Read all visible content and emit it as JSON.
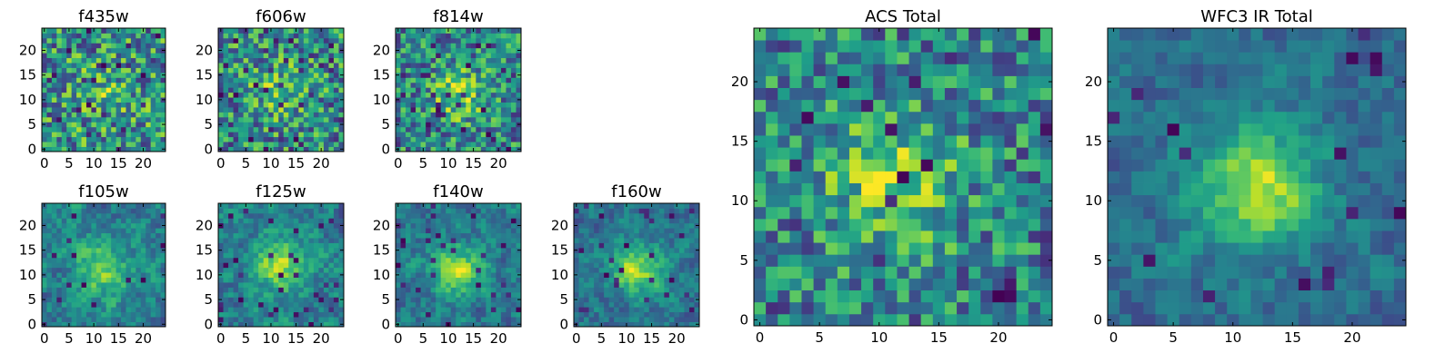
{
  "chart_data": [
    {
      "id": "f435w",
      "type": "heatmap",
      "title": "f435w",
      "grid_size": 25,
      "colormap": "viridis",
      "x_ticks": [
        "0",
        "5",
        "10",
        "15",
        "20"
      ],
      "y_ticks": [
        "0",
        "5",
        "10",
        "15",
        "20"
      ],
      "vmin": 0,
      "vmax": 1,
      "seed": 11,
      "blob": {
        "cx": 12,
        "cy": 12,
        "sigma": 4,
        "amp": 0.15
      },
      "noise": 0.85,
      "dark_fraction": 0.04
    },
    {
      "id": "f606w",
      "type": "heatmap",
      "title": "f606w",
      "grid_size": 25,
      "colormap": "viridis",
      "x_ticks": [
        "0",
        "5",
        "10",
        "15",
        "20"
      ],
      "y_ticks": [
        "0",
        "5",
        "10",
        "15",
        "20"
      ],
      "vmin": 0,
      "vmax": 1,
      "seed": 23,
      "blob": {
        "cx": 12,
        "cy": 12,
        "sigma": 4,
        "amp": 0.2
      },
      "noise": 0.8,
      "dark_fraction": 0.06
    },
    {
      "id": "f814w",
      "type": "heatmap",
      "title": "f814w",
      "grid_size": 25,
      "colormap": "viridis",
      "x_ticks": [
        "0",
        "5",
        "10",
        "15",
        "20"
      ],
      "y_ticks": [
        "0",
        "5",
        "10",
        "15",
        "20"
      ],
      "vmin": 0,
      "vmax": 1,
      "seed": 37,
      "blob": {
        "cx": 12,
        "cy": 11,
        "sigma": 3.5,
        "amp": 0.35
      },
      "noise": 0.75,
      "dark_fraction": 0.05
    },
    {
      "id": "f105w",
      "type": "heatmap",
      "title": "f105w",
      "grid_size": 25,
      "colormap": "viridis",
      "x_ticks": [
        "0",
        "5",
        "10",
        "15",
        "20"
      ],
      "y_ticks": [
        "0",
        "5",
        "10",
        "15",
        "20"
      ],
      "vmin": 0,
      "vmax": 1,
      "seed": 41,
      "blob": {
        "cx": 12,
        "cy": 11,
        "sigma": 4,
        "amp": 0.35
      },
      "noise": 0.65,
      "dark_fraction": 0.03,
      "smooth": true
    },
    {
      "id": "f125w",
      "type": "heatmap",
      "title": "f125w",
      "grid_size": 25,
      "colormap": "viridis",
      "x_ticks": [
        "0",
        "5",
        "10",
        "15",
        "20"
      ],
      "y_ticks": [
        "0",
        "5",
        "10",
        "15",
        "20"
      ],
      "vmin": 0,
      "vmax": 1,
      "seed": 53,
      "blob": {
        "cx": 12,
        "cy": 12,
        "sigma": 4,
        "amp": 0.4
      },
      "noise": 0.65,
      "dark_fraction": 0.04,
      "smooth": true
    },
    {
      "id": "f140w",
      "type": "heatmap",
      "title": "f140w",
      "grid_size": 25,
      "colormap": "viridis",
      "x_ticks": [
        "0",
        "5",
        "10",
        "15",
        "20"
      ],
      "y_ticks": [
        "0",
        "5",
        "10",
        "15",
        "20"
      ],
      "vmin": 0,
      "vmax": 1,
      "seed": 67,
      "blob": {
        "cx": 12,
        "cy": 11,
        "sigma": 3.5,
        "amp": 0.45
      },
      "noise": 0.6,
      "dark_fraction": 0.04,
      "smooth": true
    },
    {
      "id": "f160w",
      "type": "heatmap",
      "title": "f160w",
      "grid_size": 25,
      "colormap": "viridis",
      "x_ticks": [
        "0",
        "5",
        "10",
        "15",
        "20"
      ],
      "y_ticks": [
        "0",
        "5",
        "10",
        "15",
        "20"
      ],
      "vmin": 0,
      "vmax": 1,
      "seed": 79,
      "blob": {
        "cx": 12,
        "cy": 11,
        "sigma": 3.5,
        "amp": 0.5
      },
      "noise": 0.55,
      "dark_fraction": 0.04,
      "smooth": true
    },
    {
      "id": "acs_total",
      "type": "heatmap",
      "title": "ACS Total",
      "grid_size": 25,
      "colormap": "viridis",
      "x_ticks": [
        "0",
        "5",
        "10",
        "15",
        "20"
      ],
      "y_ticks": [
        "0",
        "5",
        "10",
        "15",
        "20"
      ],
      "vmin": 0,
      "vmax": 1,
      "seed": 97,
      "blob": {
        "cx": 11,
        "cy": 12,
        "sigma": 4,
        "amp": 0.35
      },
      "noise": 0.7,
      "dark_fraction": 0.03
    },
    {
      "id": "wfc3_ir_total",
      "type": "heatmap",
      "title": "WFC3 IR Total",
      "grid_size": 25,
      "colormap": "viridis",
      "x_ticks": [
        "0",
        "5",
        "10",
        "15",
        "20"
      ],
      "y_ticks": [
        "0",
        "5",
        "10",
        "15",
        "20"
      ],
      "vmin": 0,
      "vmax": 1,
      "seed": 131,
      "blob": {
        "cx": 12,
        "cy": 11,
        "sigma": 3.5,
        "amp": 0.55
      },
      "noise": 0.5,
      "dark_fraction": 0.03,
      "smooth": true
    }
  ],
  "colors": {
    "viridis_stops": [
      "#440154",
      "#482878",
      "#3e4989",
      "#31688e",
      "#26828e",
      "#1f9e89",
      "#35b779",
      "#6ece58",
      "#b5de2b",
      "#fde725"
    ]
  }
}
